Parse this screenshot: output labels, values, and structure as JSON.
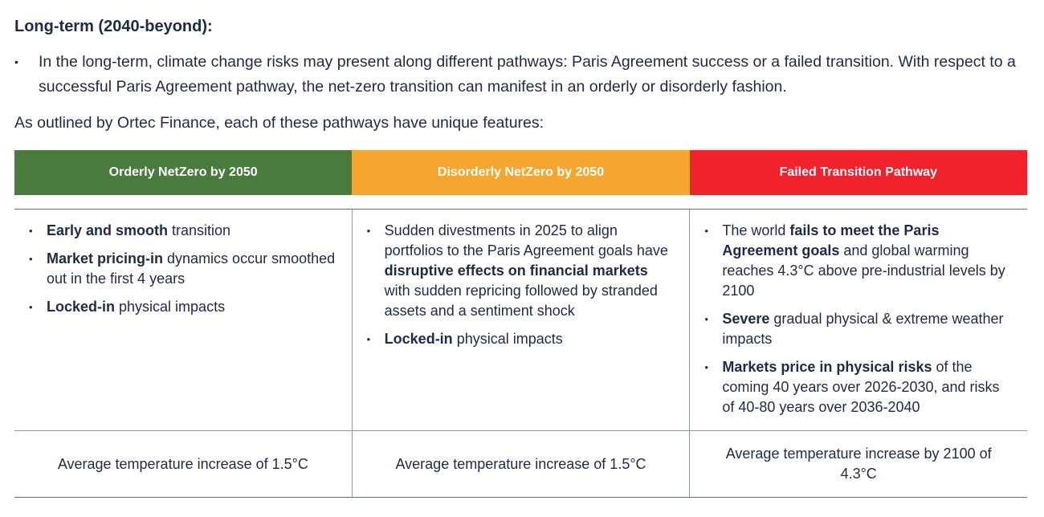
{
  "heading": "Long-term (2040-beyond):",
  "top_bullet": "In the long-term, climate change risks may present along different pathways: Paris Agreement success or a failed transition. With respect to a successful Paris Agreement pathway, the net-zero transition can manifest in an orderly or disorderly fashion.",
  "intro": "As outlined by Ortec Finance, each of these pathways have unique features:",
  "colors": {
    "orderly": "#4a7a3d",
    "disorderly": "#f6a52e",
    "failed": "#f1212d",
    "text": "#1f2a44"
  },
  "columns": [
    {
      "title": "Orderly NetZero by 2050",
      "bullets": [
        [
          {
            "b": "Early and smooth"
          },
          {
            "t": " transition"
          }
        ],
        [
          {
            "b": "Market pricing-in"
          },
          {
            "t": " dynamics occur smoothed out in the first 4 years"
          }
        ],
        [
          {
            "b": "Locked-in"
          },
          {
            "t": " physical impacts"
          }
        ]
      ],
      "footer": "Average temperature increase of 1.5°C"
    },
    {
      "title": "Disorderly NetZero by 2050",
      "bullets": [
        [
          {
            "t": "Sudden divestments in 2025 to align portfolios to the Paris Agreement goals have "
          },
          {
            "b": "disruptive effects on financial markets"
          },
          {
            "t": " with sudden repricing followed by stranded assets and a sentiment shock"
          }
        ],
        [
          {
            "b": "Locked-in"
          },
          {
            "t": " physical impacts"
          }
        ]
      ],
      "footer": "Average temperature increase of 1.5°C"
    },
    {
      "title": "Failed Transition Pathway",
      "bullets": [
        [
          {
            "t": "The world "
          },
          {
            "b": "fails to meet the Paris Agreement goals"
          },
          {
            "t": " and global warming reaches 4.3°C above pre-industrial levels by 2100"
          }
        ],
        [
          {
            "b": "Severe"
          },
          {
            "t": " gradual physical & extreme weather impacts"
          }
        ],
        [
          {
            "b": "Markets price in physical risks"
          },
          {
            "t": " of the coming 40 years over 2026-2030, and risks of 40-80 years over 2036-2040"
          }
        ]
      ],
      "footer": "Average temperature increase by 2100 of 4.3°C"
    }
  ]
}
